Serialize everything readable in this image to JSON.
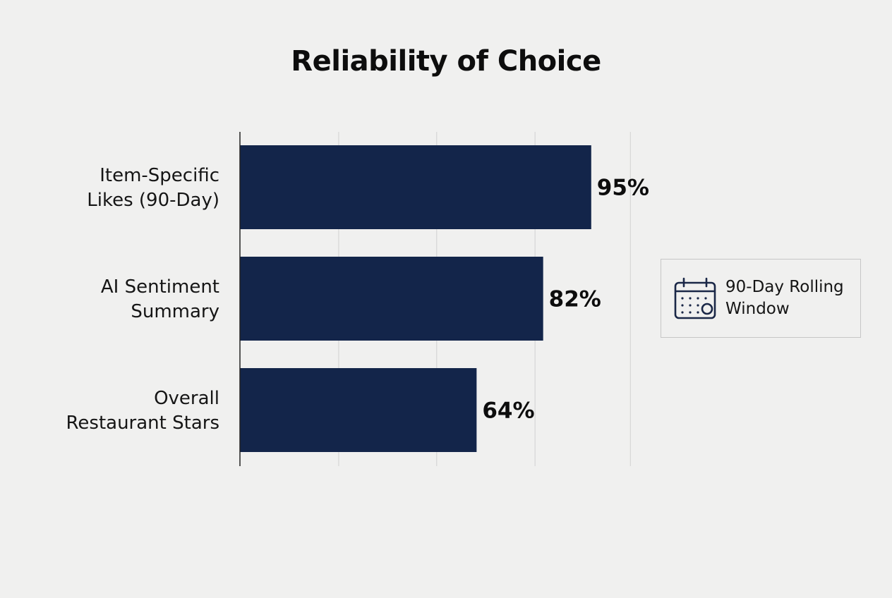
{
  "chart_data": {
    "type": "bar",
    "orientation": "horizontal",
    "title": "Reliability of Choice",
    "xlabel": "",
    "ylabel": "",
    "xlim": [
      0,
      100
    ],
    "grid": true,
    "categories": [
      [
        "Item-Specific",
        "Likes (90-Day)"
      ],
      [
        "AI Sentiment",
        "Summary"
      ],
      [
        "Overall",
        "Restaurant Stars"
      ]
    ],
    "values": [
      95,
      82,
      64
    ],
    "data_labels": [
      "95%",
      "82%",
      "64%"
    ],
    "bar_color": "#13254a"
  },
  "legend": {
    "icon": "calendar-icon",
    "text": "90-Day Rolling Window",
    "placement": "right"
  }
}
